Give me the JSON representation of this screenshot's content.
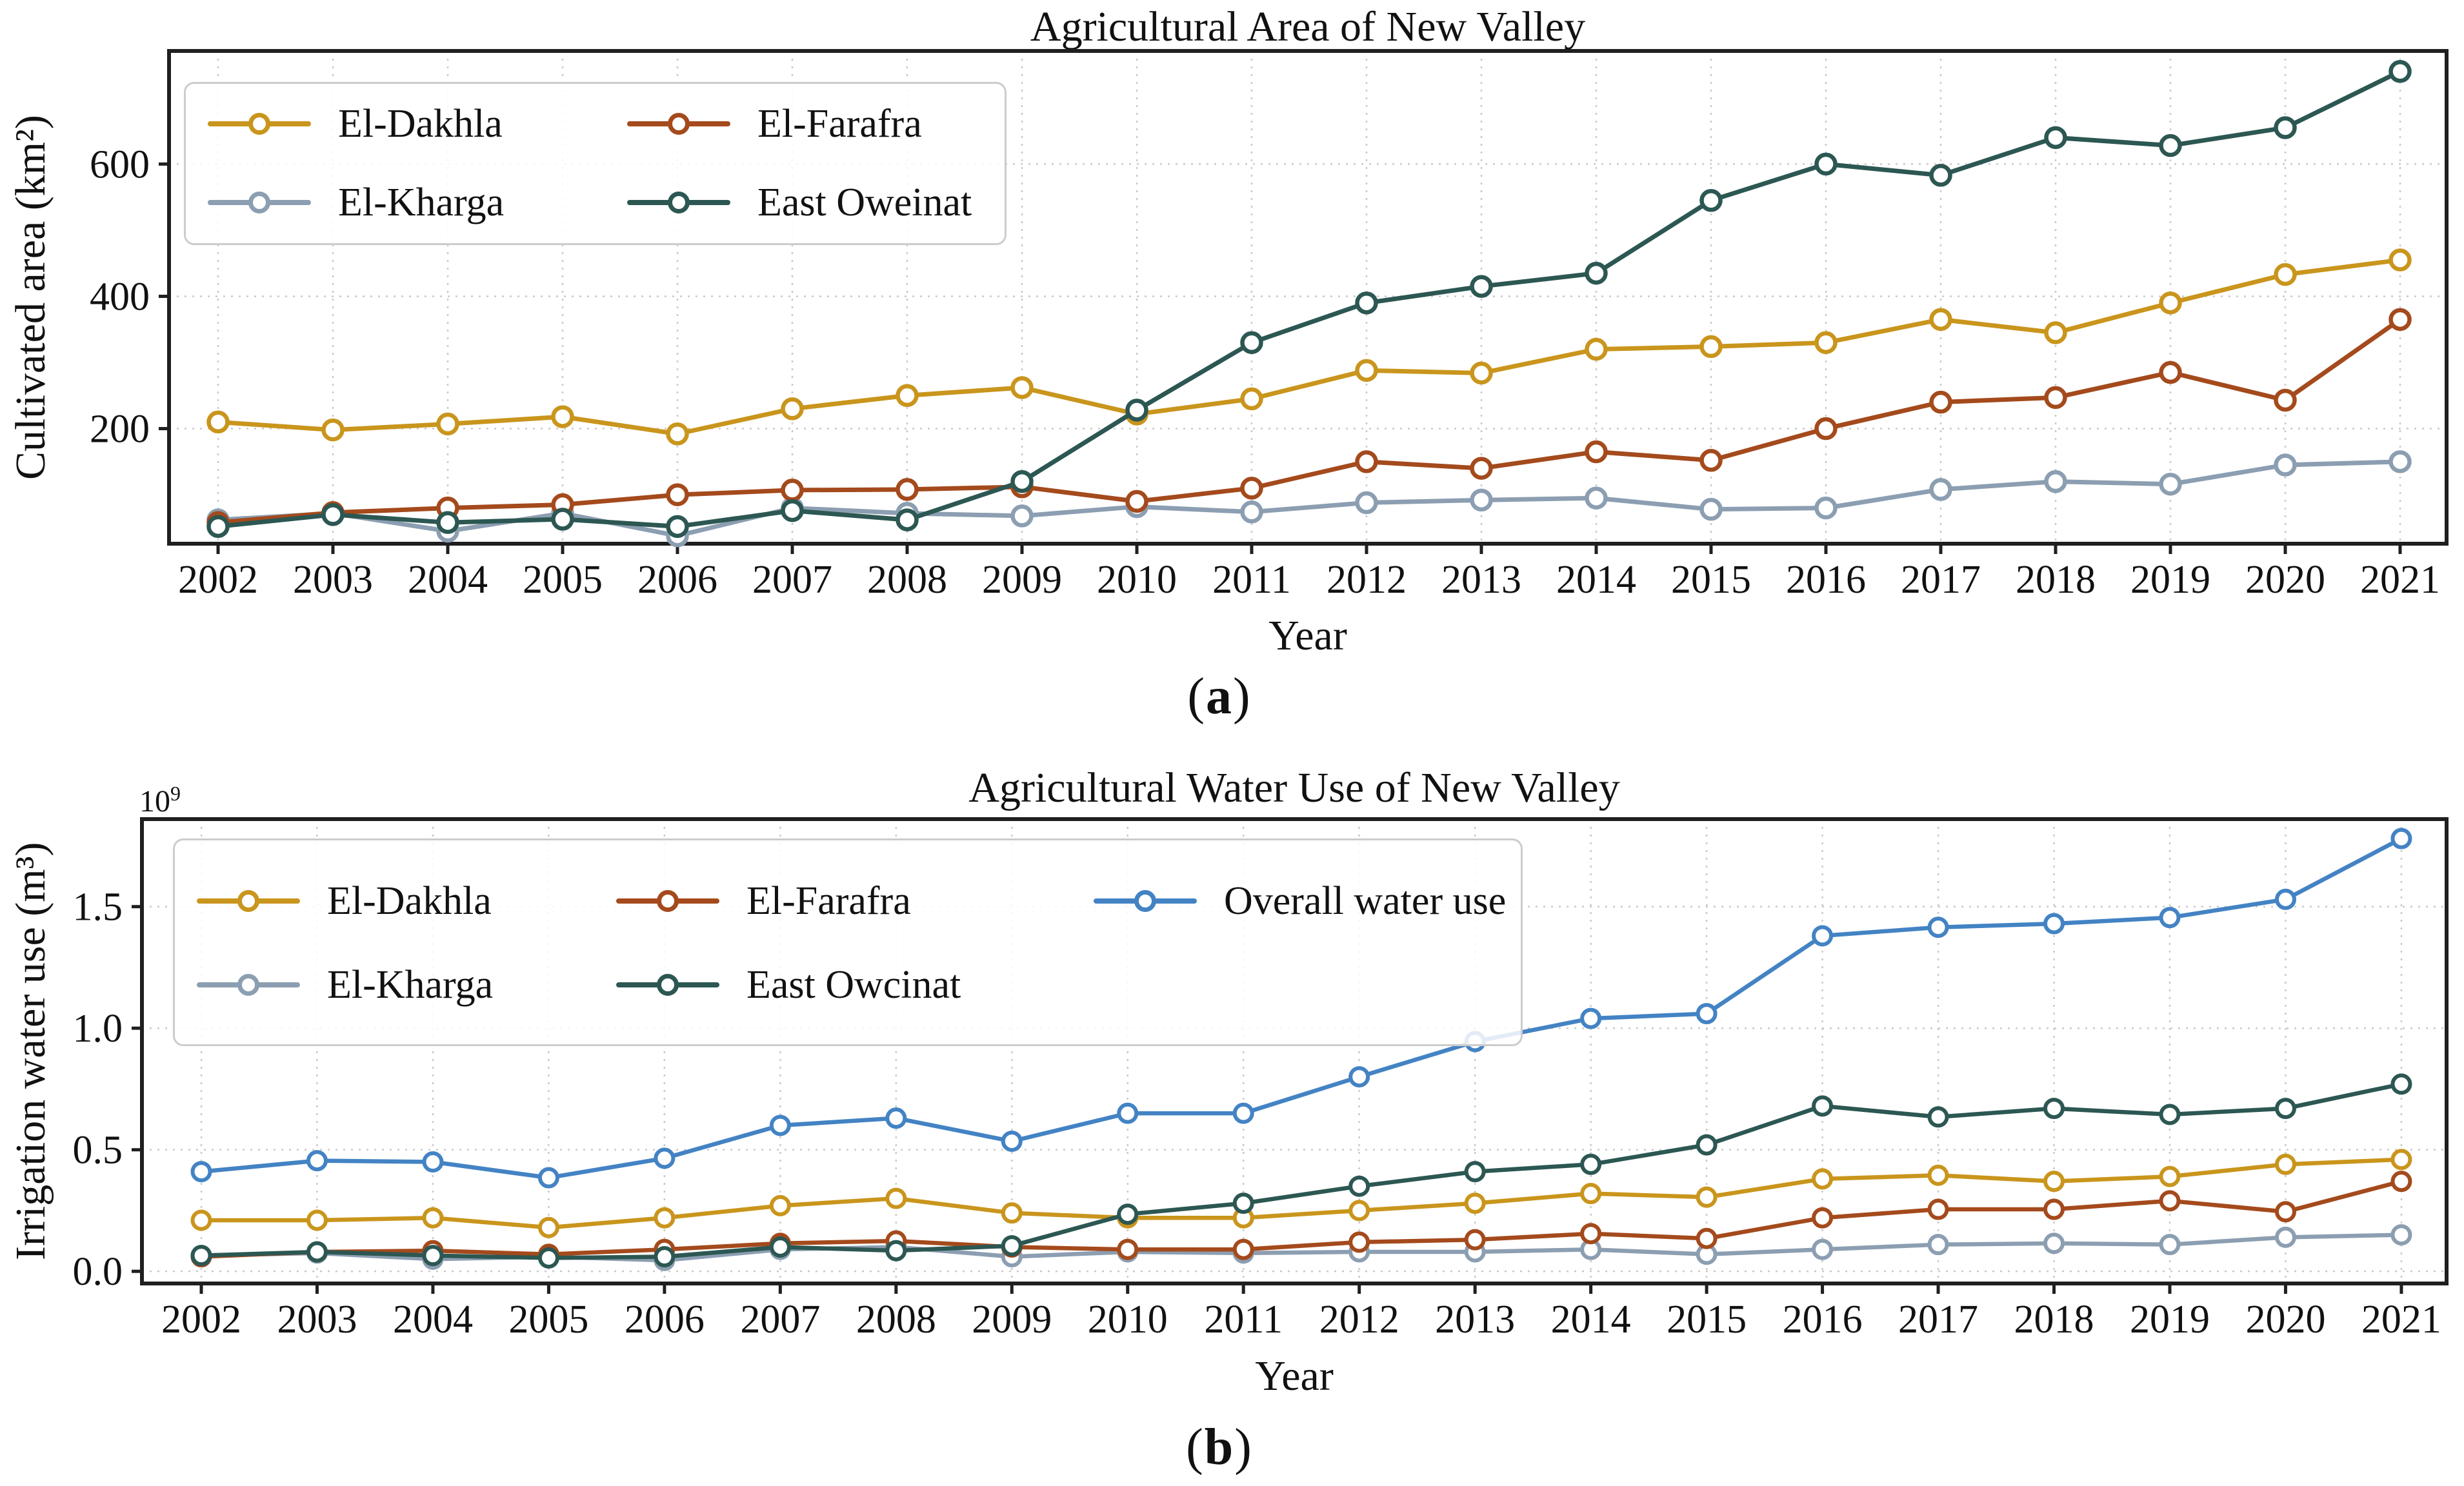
{
  "page": {
    "background": "#ffffff",
    "text_color": "#111111",
    "grid_color": "#c9c9c9",
    "frame_color": "#1f1f1f"
  },
  "captions": {
    "a": {
      "open": "(",
      "letter": "a",
      "close": ")"
    },
    "b": {
      "open": "(",
      "letter": "b",
      "close": ")"
    }
  },
  "chart_data": [
    {
      "id": "a",
      "type": "line",
      "title": "Agricultural Area of New Valley",
      "xlabel": "Year",
      "ylabel": "Cultivated area (km²)",
      "x": [
        2002,
        2003,
        2004,
        2005,
        2006,
        2007,
        2008,
        2009,
        2010,
        2011,
        2012,
        2013,
        2014,
        2015,
        2016,
        2017,
        2018,
        2019,
        2020,
        2021
      ],
      "yticks": [
        200,
        400,
        600
      ],
      "ytick_labels": [
        "200",
        "400",
        "600"
      ],
      "ylim": [
        26,
        771
      ],
      "grid": true,
      "legend": {
        "ncol": 2,
        "location": "upper left"
      },
      "series": [
        {
          "name": "El-Dakhla",
          "color": "#C9951C",
          "values": [
            210,
            198,
            207,
            218,
            192,
            230,
            250,
            262,
            222,
            245,
            288,
            284,
            320,
            324,
            330,
            365,
            345,
            390,
            433,
            455
          ]
        },
        {
          "name": "El-Kharga",
          "color": "#8C9EB1",
          "values": [
            62,
            72,
            45,
            72,
            38,
            80,
            72,
            68,
            82,
            74,
            88,
            92,
            95,
            78,
            80,
            108,
            120,
            116,
            145,
            150
          ]
        },
        {
          "name": "El-Farafra",
          "color": "#A44A1C",
          "values": [
            58,
            73,
            80,
            85,
            100,
            107,
            108,
            112,
            90,
            110,
            150,
            140,
            165,
            152,
            200,
            240,
            247,
            285,
            243,
            365
          ]
        },
        {
          "name": "East Oweinat",
          "color": "#2C5752",
          "values": [
            52,
            70,
            58,
            63,
            52,
            76,
            62,
            120,
            228,
            330,
            390,
            415,
            435,
            545,
            600,
            583,
            640,
            628,
            655,
            740
          ]
        }
      ]
    },
    {
      "id": "b",
      "type": "line",
      "title": "Agricultural Water Use of New Valley",
      "xlabel": "Year",
      "ylabel": "Irrigation water use (m³)",
      "offset_text": {
        "base": "10",
        "exp": "9"
      },
      "x": [
        2002,
        2003,
        2004,
        2005,
        2006,
        2007,
        2008,
        2009,
        2010,
        2011,
        2012,
        2013,
        2014,
        2015,
        2016,
        2017,
        2018,
        2019,
        2020,
        2021
      ],
      "yticks": [
        0,
        0.5,
        1.0,
        1.5
      ],
      "ytick_labels": [
        "0.0",
        "0.5",
        "1.0",
        "1.5"
      ],
      "ylim": [
        -0.05,
        1.86
      ],
      "grid": true,
      "legend": {
        "ncol": 3,
        "location": "upper left"
      },
      "series": [
        {
          "name": "El-Dakhla",
          "color": "#C9951C",
          "values": [
            0.21,
            0.21,
            0.22,
            0.18,
            0.22,
            0.27,
            0.3,
            0.24,
            0.22,
            0.22,
            0.25,
            0.28,
            0.32,
            0.305,
            0.38,
            0.395,
            0.37,
            0.39,
            0.44,
            0.46
          ]
        },
        {
          "name": "El-Kharga",
          "color": "#8C9EB1",
          "values": [
            0.065,
            0.075,
            0.05,
            0.06,
            0.045,
            0.09,
            0.1,
            0.06,
            0.08,
            0.075,
            0.08,
            0.08,
            0.09,
            0.07,
            0.09,
            0.11,
            0.115,
            0.11,
            0.14,
            0.15
          ]
        },
        {
          "name": "El-Farafra",
          "color": "#A44A1C",
          "values": [
            0.06,
            0.08,
            0.085,
            0.07,
            0.09,
            0.115,
            0.125,
            0.1,
            0.09,
            0.09,
            0.12,
            0.13,
            0.155,
            0.135,
            0.22,
            0.255,
            0.255,
            0.29,
            0.245,
            0.37
          ]
        },
        {
          "name": "East Owcinat",
          "color": "#2C5752",
          "values": [
            0.065,
            0.08,
            0.065,
            0.055,
            0.06,
            0.1,
            0.085,
            0.105,
            0.235,
            0.28,
            0.35,
            0.41,
            0.44,
            0.52,
            0.68,
            0.635,
            0.67,
            0.645,
            0.67,
            0.77
          ]
        },
        {
          "name": "Overall water use",
          "color": "#4383C4",
          "values": [
            0.41,
            0.455,
            0.45,
            0.385,
            0.465,
            0.6,
            0.63,
            0.535,
            0.65,
            0.65,
            0.8,
            0.945,
            1.04,
            1.06,
            1.38,
            1.415,
            1.43,
            1.455,
            1.53,
            1.78
          ]
        }
      ]
    }
  ]
}
